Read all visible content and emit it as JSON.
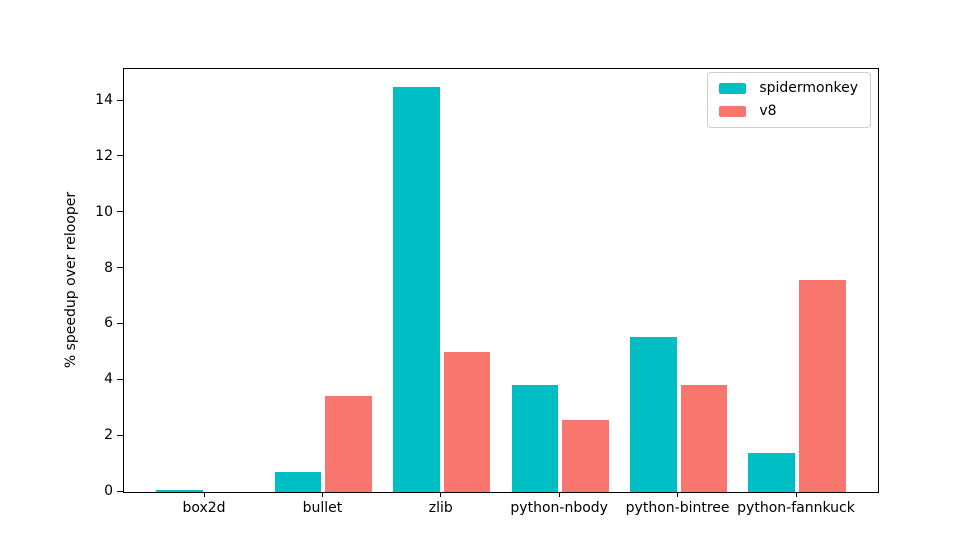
{
  "chart_data": {
    "type": "bar",
    "title": "",
    "xlabel": "",
    "ylabel": "% speedup over relooper",
    "categories": [
      "box2d",
      "bullet",
      "zlib",
      "python-nbody",
      "python-bintree",
      "python-fannkuck"
    ],
    "series": [
      {
        "name": "spidermonkey",
        "color": "#00BFC4",
        "values": [
          0.08,
          0.72,
          14.5,
          3.85,
          5.55,
          1.38
        ]
      },
      {
        "name": "v8",
        "color": "#F8766D",
        "values": [
          0.0,
          3.45,
          5.0,
          2.58,
          3.85,
          7.6
        ]
      }
    ],
    "yticks": [
      0,
      2,
      4,
      6,
      8,
      10,
      12,
      14
    ],
    "ylim": [
      0,
      15.15
    ],
    "grid": false,
    "legend_position": "upper right",
    "background_color": "#ffffff",
    "axis_color": "#000000"
  }
}
